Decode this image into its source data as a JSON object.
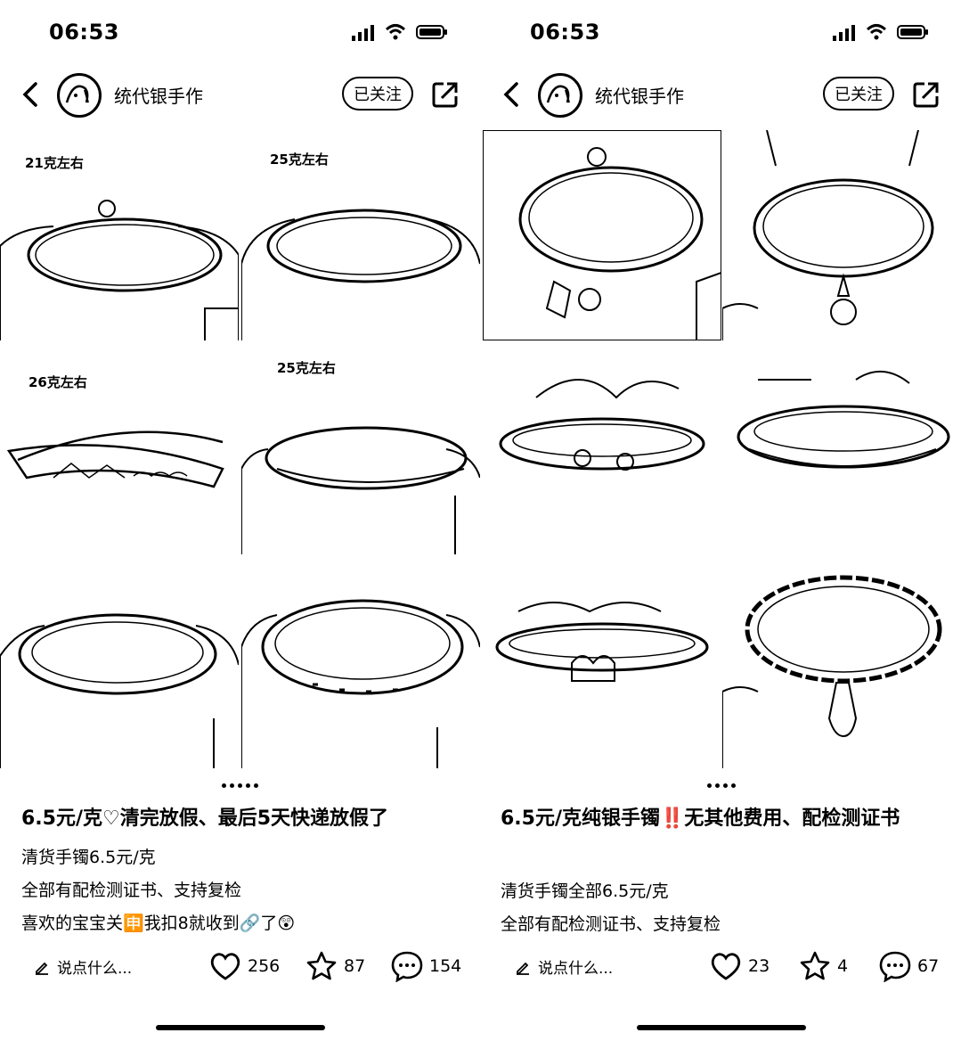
{
  "left": {
    "status": {
      "time": "06:53"
    },
    "nav": {
      "author": "统代银手作",
      "follow": "已关注"
    },
    "weights": [
      "21克左右",
      "25克左右",
      "26克左右",
      "25克左右"
    ],
    "title": "6.5元/克♡清完放假、最后5天快递放假了",
    "desc": [
      "清货手镯6.5元/克",
      "全部有配检测证书、支持复检",
      "喜欢的宝宝关🈸我扣8就收到🔗了😲"
    ],
    "comment_placeholder": "说点什么...",
    "likes": "256",
    "stars": "87",
    "comments": "154"
  },
  "right": {
    "status": {
      "time": "06:53"
    },
    "nav": {
      "author": "统代银手作",
      "follow": "已关注"
    },
    "title": "6.5元/克纯银手镯‼️无其他费用、配检测证书",
    "desc": [
      "清货手镯全部6.5元/克",
      "全部有配检测证书、支持复检"
    ],
    "comment_placeholder": "说点什么...",
    "likes": "23",
    "stars": "4",
    "comments": "67"
  }
}
